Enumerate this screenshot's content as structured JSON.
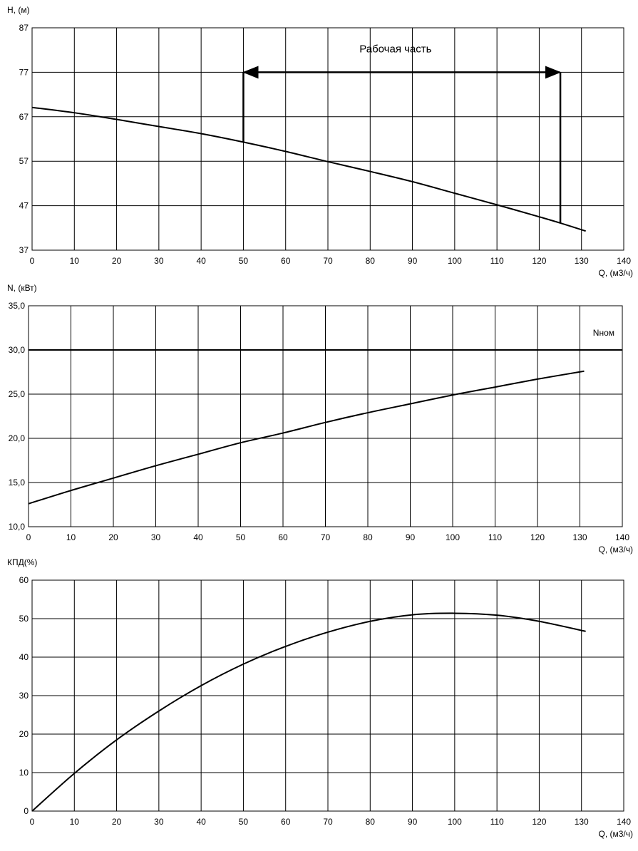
{
  "chart_data": [
    {
      "type": "line",
      "ylabel": "H, (м)",
      "xlabel": "Q, (м3/ч)",
      "xlim": [
        0,
        140
      ],
      "ylim": [
        37,
        87
      ],
      "x_ticks": [
        0,
        10,
        20,
        30,
        40,
        50,
        60,
        70,
        80,
        90,
        100,
        110,
        120,
        130,
        140
      ],
      "y_ticks": [
        37,
        47,
        57,
        67,
        77,
        87
      ],
      "y_tick_labels": [
        "37",
        "47",
        "57",
        "67",
        "77",
        "87"
      ],
      "grid": true,
      "series": [
        {
          "x": [
            0,
            10,
            20,
            30,
            40,
            50,
            60,
            70,
            80,
            90,
            100,
            110,
            120,
            125,
            131
          ],
          "y": [
            69.1,
            67.9,
            66.4,
            64.8,
            63.2,
            61.3,
            59.2,
            56.9,
            54.7,
            52.4,
            49.8,
            47.2,
            44.5,
            43.1,
            41.3
          ]
        }
      ],
      "annotations": [
        {
          "text": "Рабочая часть",
          "range_x": [
            50,
            125
          ],
          "arrow_y": 77,
          "text_x": 86,
          "text_y": 81.5
        }
      ]
    },
    {
      "type": "line",
      "ylabel": "N, (кВт)",
      "xlabel": "Q, (м3/ч)",
      "xlim": [
        0,
        140
      ],
      "ylim": [
        10,
        35
      ],
      "x_ticks": [
        0,
        10,
        20,
        30,
        40,
        50,
        60,
        70,
        80,
        90,
        100,
        110,
        120,
        130,
        140
      ],
      "y_ticks": [
        10,
        15,
        20,
        25,
        30,
        35
      ],
      "y_tick_labels": [
        "10,0",
        "15,0",
        "20,0",
        "25,0",
        "30,0",
        "35,0"
      ],
      "grid": true,
      "series": [
        {
          "x": [
            0,
            10,
            20,
            30,
            40,
            50,
            60,
            70,
            80,
            90,
            100,
            110,
            120,
            131
          ],
          "y": [
            12.6,
            14.1,
            15.5,
            16.9,
            18.2,
            19.5,
            20.6,
            21.8,
            22.9,
            23.9,
            24.9,
            25.8,
            26.7,
            27.6
          ]
        }
      ],
      "reference_line": {
        "label": "Nном",
        "y": 30
      }
    },
    {
      "type": "line",
      "ylabel": "КПД(%)",
      "xlabel": "Q, (м3/ч)",
      "xlim": [
        0,
        140
      ],
      "ylim": [
        0,
        60
      ],
      "x_ticks": [
        0,
        10,
        20,
        30,
        40,
        50,
        60,
        70,
        80,
        90,
        100,
        110,
        120,
        130,
        140
      ],
      "y_ticks": [
        0,
        10,
        20,
        30,
        40,
        50,
        60
      ],
      "y_tick_labels": [
        "0",
        "10",
        "20",
        "30",
        "40",
        "50",
        "60"
      ],
      "grid": true,
      "series": [
        {
          "x": [
            0,
            10,
            20,
            30,
            40,
            50,
            60,
            70,
            80,
            90,
            100,
            110,
            120,
            131
          ],
          "y": [
            0,
            9.8,
            18.5,
            26.0,
            32.6,
            38.2,
            42.8,
            46.5,
            49.3,
            51.0,
            51.4,
            50.9,
            49.3,
            46.7
          ]
        }
      ]
    }
  ]
}
